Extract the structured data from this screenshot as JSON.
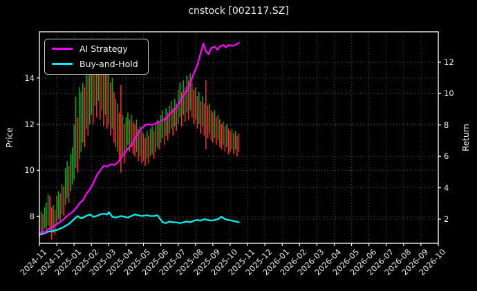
{
  "title": "cnstock [002117.SZ]",
  "chart_data": {
    "type": "mixed-candlestick-line",
    "title": "cnstock [002117.SZ]",
    "x_axis": {
      "months_span": 23,
      "tick_labels": [
        "2024-11",
        "2024-12",
        "2025-01",
        "2025-02",
        "2025-03",
        "2025-04",
        "2025-05",
        "2025-06",
        "2025-07",
        "2025-08",
        "2025-09",
        "2025-10",
        "2025-11",
        "2025-12",
        "2026-01",
        "2026-02",
        "2026-03",
        "2026-04",
        "2026-05",
        "2026-06",
        "2026-07",
        "2026-08",
        "2026-09",
        "2026-10"
      ]
    },
    "left_axis": {
      "label": "Price",
      "ticks": [
        8,
        10,
        12,
        14
      ],
      "min": 6.84,
      "max": 16.0
    },
    "right_axis": {
      "label": "Return",
      "ticks": [
        2,
        4,
        6,
        8,
        10,
        12
      ],
      "min": 0.46,
      "max": 13.94
    },
    "grid": {
      "show": true,
      "color": "#4d4d4d",
      "line_style": "dotted"
    },
    "frame_color": "#ffffff",
    "background_color": "#000000",
    "legend": {
      "position": "upper-left",
      "items": [
        {
          "label": "AI Strategy",
          "color": "#ff00ff"
        },
        {
          "label": "Buy-and-Hold",
          "color": "#00f2f2"
        }
      ]
    },
    "candles": {
      "name": "daily-price-high-low-bars",
      "axis": "left",
      "up_color": "#1ea51e",
      "down_color": "#ff2d2d",
      "bars": [
        [
          0.0,
          7.1,
          8.0,
          0
        ],
        [
          0.1,
          7.3,
          8.2,
          1
        ],
        [
          0.2,
          7.2,
          8.1,
          0
        ],
        [
          0.3,
          7.5,
          8.4,
          1
        ],
        [
          0.4,
          7.4,
          8.6,
          1
        ],
        [
          0.5,
          7.6,
          9.0,
          1
        ],
        [
          0.6,
          7.4,
          8.9,
          0
        ],
        [
          0.7,
          7.0,
          8.4,
          0
        ],
        [
          0.8,
          7.3,
          8.5,
          1
        ],
        [
          0.9,
          7.2,
          8.3,
          0
        ],
        [
          1.0,
          7.7,
          8.9,
          1
        ],
        [
          1.1,
          7.9,
          9.1,
          1
        ],
        [
          1.2,
          7.8,
          9.0,
          0
        ],
        [
          1.3,
          8.1,
          9.4,
          1
        ],
        [
          1.4,
          8.0,
          9.3,
          0
        ],
        [
          1.5,
          8.5,
          10.1,
          1
        ],
        [
          1.6,
          8.8,
          10.4,
          1
        ],
        [
          1.7,
          8.6,
          10.2,
          0
        ],
        [
          1.8,
          9.1,
          10.7,
          1
        ],
        [
          1.9,
          9.4,
          11.0,
          1
        ],
        [
          2.0,
          9.6,
          12.0,
          1
        ],
        [
          2.1,
          10.1,
          13.2,
          1
        ],
        [
          2.2,
          9.9,
          12.3,
          0
        ],
        [
          2.3,
          10.5,
          13.6,
          1
        ],
        [
          2.4,
          10.8,
          13.4,
          1
        ],
        [
          2.5,
          11.2,
          13.8,
          1
        ],
        [
          2.6,
          11.0,
          13.6,
          0
        ],
        [
          2.7,
          11.8,
          14.4,
          1
        ],
        [
          2.8,
          11.5,
          14.1,
          0
        ],
        [
          2.9,
          12.0,
          14.6,
          1
        ],
        [
          3.0,
          12.4,
          14.8,
          1
        ],
        [
          3.1,
          12.0,
          14.3,
          0
        ],
        [
          3.2,
          12.8,
          15.3,
          1
        ],
        [
          3.3,
          12.3,
          14.6,
          0
        ],
        [
          3.4,
          13.0,
          15.6,
          1
        ],
        [
          3.5,
          12.2,
          14.9,
          0
        ],
        [
          3.6,
          12.6,
          15.2,
          1
        ],
        [
          3.7,
          11.9,
          14.4,
          0
        ],
        [
          3.8,
          12.4,
          15.0,
          1
        ],
        [
          3.9,
          11.8,
          14.2,
          0
        ],
        [
          4.0,
          12.0,
          14.5,
          1
        ],
        [
          4.1,
          11.5,
          13.8,
          0
        ],
        [
          4.2,
          11.8,
          14.0,
          1
        ],
        [
          4.3,
          11.2,
          13.4,
          0
        ],
        [
          4.4,
          11.0,
          13.1,
          0
        ],
        [
          4.5,
          10.8,
          12.9,
          1
        ],
        [
          4.6,
          10.5,
          12.5,
          0
        ],
        [
          4.7,
          9.9,
          13.7,
          0
        ],
        [
          4.8,
          10.6,
          12.4,
          1
        ],
        [
          4.9,
          10.3,
          12.0,
          0
        ],
        [
          5.0,
          10.9,
          12.3,
          1
        ],
        [
          5.1,
          11.1,
          12.5,
          1
        ],
        [
          5.2,
          10.8,
          12.2,
          0
        ],
        [
          5.3,
          11.0,
          12.4,
          1
        ],
        [
          5.4,
          10.7,
          12.1,
          0
        ],
        [
          5.5,
          10.6,
          12.0,
          0
        ],
        [
          5.6,
          10.8,
          12.2,
          1
        ],
        [
          5.7,
          10.4,
          11.8,
          0
        ],
        [
          5.8,
          10.6,
          11.9,
          1
        ],
        [
          5.9,
          10.3,
          11.7,
          0
        ],
        [
          6.0,
          10.4,
          11.6,
          0
        ],
        [
          6.1,
          10.2,
          11.4,
          0
        ],
        [
          6.2,
          10.5,
          11.7,
          1
        ],
        [
          6.3,
          10.3,
          11.5,
          0
        ],
        [
          6.4,
          10.6,
          11.8,
          1
        ],
        [
          6.5,
          10.7,
          11.9,
          1
        ],
        [
          6.6,
          10.5,
          11.7,
          0
        ],
        [
          6.7,
          10.8,
          12.0,
          1
        ],
        [
          6.8,
          11.0,
          12.2,
          1
        ],
        [
          6.9,
          10.9,
          12.1,
          0
        ],
        [
          7.0,
          11.2,
          12.4,
          1
        ],
        [
          7.1,
          11.4,
          12.6,
          1
        ],
        [
          7.2,
          11.1,
          12.3,
          0
        ],
        [
          7.3,
          11.5,
          12.7,
          1
        ],
        [
          7.4,
          11.3,
          12.5,
          0
        ],
        [
          7.5,
          11.6,
          12.8,
          1
        ],
        [
          7.6,
          11.8,
          13.0,
          1
        ],
        [
          7.7,
          11.5,
          12.7,
          0
        ],
        [
          7.8,
          11.9,
          13.1,
          1
        ],
        [
          7.9,
          11.7,
          12.9,
          0
        ],
        [
          8.0,
          12.0,
          13.5,
          1
        ],
        [
          8.1,
          12.3,
          13.8,
          1
        ],
        [
          8.2,
          11.9,
          13.4,
          0
        ],
        [
          8.3,
          12.4,
          13.9,
          1
        ],
        [
          8.4,
          12.1,
          13.6,
          0
        ],
        [
          8.5,
          12.5,
          14.1,
          1
        ],
        [
          8.6,
          12.2,
          13.9,
          0
        ],
        [
          8.7,
          12.6,
          14.2,
          1
        ],
        [
          8.8,
          12.3,
          13.8,
          0
        ],
        [
          8.9,
          12.0,
          13.5,
          0
        ],
        [
          9.0,
          12.2,
          13.6,
          1
        ],
        [
          9.1,
          11.8,
          13.2,
          0
        ],
        [
          9.2,
          12.0,
          13.4,
          1
        ],
        [
          9.3,
          11.6,
          13.0,
          0
        ],
        [
          9.4,
          11.9,
          13.2,
          1
        ],
        [
          9.5,
          11.5,
          12.9,
          0
        ],
        [
          9.6,
          10.9,
          13.9,
          0
        ],
        [
          9.7,
          11.4,
          12.8,
          0
        ],
        [
          9.8,
          11.6,
          12.9,
          1
        ],
        [
          9.9,
          11.3,
          12.6,
          0
        ],
        [
          10.0,
          11.2,
          12.5,
          0
        ],
        [
          10.1,
          11.4,
          12.6,
          1
        ],
        [
          10.2,
          11.1,
          12.3,
          0
        ],
        [
          10.3,
          11.3,
          12.4,
          1
        ],
        [
          10.4,
          11.0,
          12.2,
          0
        ],
        [
          10.5,
          10.9,
          12.0,
          0
        ],
        [
          10.6,
          11.1,
          12.1,
          1
        ],
        [
          10.7,
          10.8,
          11.9,
          0
        ],
        [
          10.8,
          11.0,
          12.0,
          1
        ],
        [
          10.9,
          10.7,
          11.8,
          0
        ],
        [
          11.0,
          10.8,
          11.7,
          0
        ],
        [
          11.1,
          10.9,
          11.8,
          1
        ],
        [
          11.2,
          10.7,
          11.6,
          0
        ],
        [
          11.3,
          10.9,
          11.7,
          1
        ],
        [
          11.4,
          10.6,
          11.5,
          0
        ],
        [
          11.5,
          10.8,
          11.6,
          0
        ]
      ]
    },
    "series": [
      {
        "name": "AI Strategy",
        "axis": "right",
        "color": "#ff00ff",
        "line_width": 2.3,
        "points": [
          [
            0.0,
            1.05
          ],
          [
            0.15,
            1.2
          ],
          [
            0.3,
            1.15
          ],
          [
            0.5,
            1.35
          ],
          [
            0.7,
            1.45
          ],
          [
            0.9,
            1.6
          ],
          [
            1.1,
            1.75
          ],
          [
            1.3,
            1.9
          ],
          [
            1.5,
            2.1
          ],
          [
            1.7,
            2.3
          ],
          [
            1.9,
            2.45
          ],
          [
            2.1,
            2.7
          ],
          [
            2.3,
            3.0
          ],
          [
            2.5,
            3.2
          ],
          [
            2.7,
            3.6
          ],
          [
            2.9,
            3.9
          ],
          [
            3.1,
            4.3
          ],
          [
            3.3,
            4.8
          ],
          [
            3.5,
            5.1
          ],
          [
            3.7,
            5.4
          ],
          [
            3.9,
            5.35
          ],
          [
            4.1,
            5.5
          ],
          [
            4.3,
            5.45
          ],
          [
            4.5,
            5.6
          ],
          [
            4.7,
            5.9
          ],
          [
            4.9,
            6.2
          ],
          [
            5.1,
            6.5
          ],
          [
            5.3,
            6.7
          ],
          [
            5.5,
            7.1
          ],
          [
            5.7,
            7.5
          ],
          [
            5.9,
            7.8
          ],
          [
            6.1,
            8.0
          ],
          [
            6.3,
            8.05
          ],
          [
            6.5,
            8.0
          ],
          [
            6.7,
            8.1
          ],
          [
            6.9,
            8.2
          ],
          [
            7.1,
            8.3
          ],
          [
            7.3,
            8.4
          ],
          [
            7.5,
            8.7
          ],
          [
            7.7,
            8.9
          ],
          [
            7.9,
            9.1
          ],
          [
            8.1,
            9.5
          ],
          [
            8.3,
            9.9
          ],
          [
            8.5,
            10.2
          ],
          [
            8.7,
            10.7
          ],
          [
            8.9,
            11.3
          ],
          [
            9.1,
            11.8
          ],
          [
            9.3,
            12.6
          ],
          [
            9.45,
            13.2
          ],
          [
            9.6,
            12.7
          ],
          [
            9.75,
            12.5
          ],
          [
            9.9,
            12.9
          ],
          [
            10.1,
            13.0
          ],
          [
            10.25,
            12.8
          ],
          [
            10.4,
            13.0
          ],
          [
            10.6,
            13.1
          ],
          [
            10.75,
            12.95
          ],
          [
            10.9,
            13.1
          ],
          [
            11.1,
            13.05
          ],
          [
            11.3,
            13.1
          ],
          [
            11.5,
            13.25
          ]
        ]
      },
      {
        "name": "Buy-and-Hold",
        "axis": "right",
        "color": "#00f2f2",
        "line_width": 2.3,
        "points": [
          [
            0.0,
            1.0
          ],
          [
            0.3,
            1.1
          ],
          [
            0.5,
            1.2
          ],
          [
            0.8,
            1.25
          ],
          [
            1.1,
            1.35
          ],
          [
            1.4,
            1.5
          ],
          [
            1.7,
            1.7
          ],
          [
            2.0,
            2.0
          ],
          [
            2.2,
            2.2
          ],
          [
            2.4,
            2.05
          ],
          [
            2.6,
            2.15
          ],
          [
            2.9,
            2.3
          ],
          [
            3.1,
            2.15
          ],
          [
            3.3,
            2.2
          ],
          [
            3.5,
            2.3
          ],
          [
            3.7,
            2.35
          ],
          [
            3.9,
            2.3
          ],
          [
            4.0,
            2.45
          ],
          [
            4.2,
            2.15
          ],
          [
            4.4,
            2.1
          ],
          [
            4.7,
            2.2
          ],
          [
            4.9,
            2.15
          ],
          [
            5.1,
            2.1
          ],
          [
            5.3,
            2.2
          ],
          [
            5.5,
            2.3
          ],
          [
            5.7,
            2.25
          ],
          [
            5.9,
            2.2
          ],
          [
            6.2,
            2.25
          ],
          [
            6.4,
            2.2
          ],
          [
            6.6,
            2.2
          ],
          [
            6.8,
            2.25
          ],
          [
            7.0,
            1.95
          ],
          [
            7.1,
            1.8
          ],
          [
            7.3,
            1.75
          ],
          [
            7.5,
            1.85
          ],
          [
            7.7,
            1.8
          ],
          [
            7.9,
            1.8
          ],
          [
            8.1,
            1.75
          ],
          [
            8.3,
            1.8
          ],
          [
            8.5,
            1.85
          ],
          [
            8.7,
            1.8
          ],
          [
            8.9,
            1.9
          ],
          [
            9.1,
            1.95
          ],
          [
            9.3,
            1.9
          ],
          [
            9.5,
            2.0
          ],
          [
            9.7,
            1.95
          ],
          [
            9.9,
            1.9
          ],
          [
            10.1,
            1.95
          ],
          [
            10.3,
            2.0
          ],
          [
            10.5,
            2.15
          ],
          [
            10.7,
            2.0
          ],
          [
            10.9,
            1.95
          ],
          [
            11.1,
            1.9
          ],
          [
            11.3,
            1.85
          ],
          [
            11.5,
            1.8
          ]
        ]
      }
    ]
  }
}
